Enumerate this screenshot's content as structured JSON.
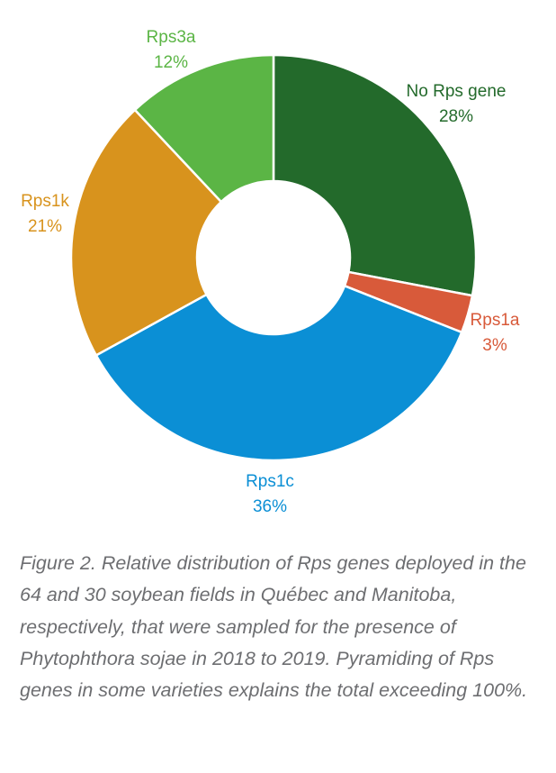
{
  "chart_data": {
    "type": "pie",
    "donut": true,
    "title": "",
    "start": "top",
    "direction": "clockwise",
    "slices": [
      {
        "label": "No Rps gene",
        "value": 28,
        "pct_label": "28%",
        "color": "#236a2b"
      },
      {
        "label": "Rps1a",
        "value": 3,
        "pct_label": "3%",
        "color": "#d85a3a"
      },
      {
        "label": "Rps1c",
        "value": 36,
        "pct_label": "36%",
        "color": "#0b8fd5"
      },
      {
        "label": "Rps1k",
        "value": 21,
        "pct_label": "21%",
        "color": "#d8931d"
      },
      {
        "label": "Rps3a",
        "value": 12,
        "pct_label": "12%",
        "color": "#5bb545"
      }
    ]
  },
  "caption": "Figure 2. Relative distribution of Rps genes deployed in the 64 and 30 soybean fields in Québec and Manitoba, respectively, that were sampled for the presence of Phytophthora sojae in 2018 to 2019. Pyramiding of Rps genes in some varieties explains the total exceeding 100%."
}
